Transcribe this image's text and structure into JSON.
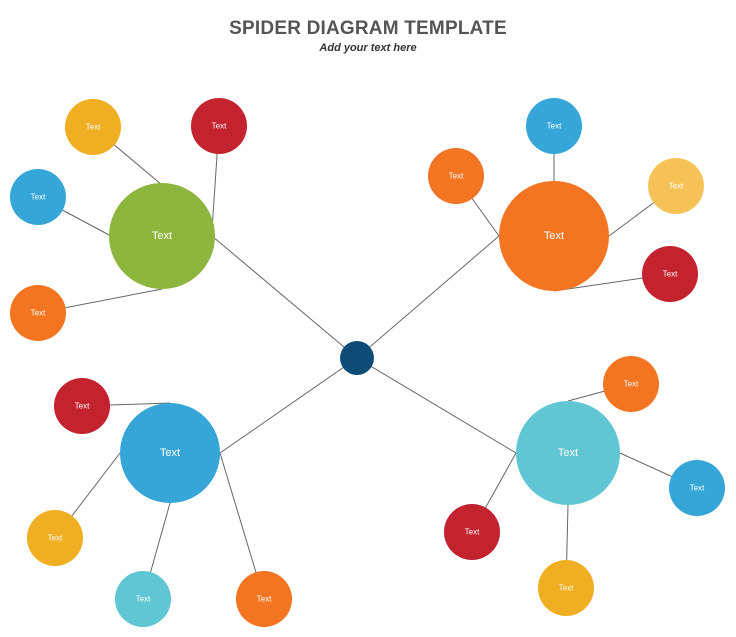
{
  "header": {
    "title": "SPIDER DIAGRAM TEMPLATE",
    "subtitle": "Add your text here"
  },
  "colors": {
    "center": "#0E4C77",
    "green": "#8EB63F",
    "orange": "#F37521",
    "blue": "#35A6D7",
    "teal": "#60C6D3",
    "red": "#C3222F",
    "yellow": "#F0AE22",
    "light_yellow": "#F6C257",
    "line": "#666666"
  },
  "center_node": {
    "label": ""
  },
  "hubs": [
    {
      "id": "top-left",
      "label": "Text",
      "color": "green",
      "leaves": [
        {
          "label": "Text",
          "color": "yellow"
        },
        {
          "label": "Text",
          "color": "red"
        },
        {
          "label": "Text",
          "color": "blue"
        },
        {
          "label": "Text",
          "color": "orange"
        }
      ]
    },
    {
      "id": "top-right",
      "label": "Text",
      "color": "orange",
      "leaves": [
        {
          "label": "Text",
          "color": "blue"
        },
        {
          "label": "Text",
          "color": "orange"
        },
        {
          "label": "Text",
          "color": "light_yellow"
        },
        {
          "label": "Text",
          "color": "red"
        }
      ]
    },
    {
      "id": "bottom-left",
      "label": "Text",
      "color": "blue",
      "leaves": [
        {
          "label": "Text",
          "color": "red"
        },
        {
          "label": "Text",
          "color": "yellow"
        },
        {
          "label": "Text",
          "color": "teal"
        },
        {
          "label": "Text",
          "color": "orange"
        }
      ]
    },
    {
      "id": "bottom-right",
      "label": "Text",
      "color": "teal",
      "leaves": [
        {
          "label": "Text",
          "color": "orange"
        },
        {
          "label": "Text",
          "color": "blue"
        },
        {
          "label": "Text",
          "color": "red"
        },
        {
          "label": "Text",
          "color": "yellow"
        }
      ]
    }
  ]
}
